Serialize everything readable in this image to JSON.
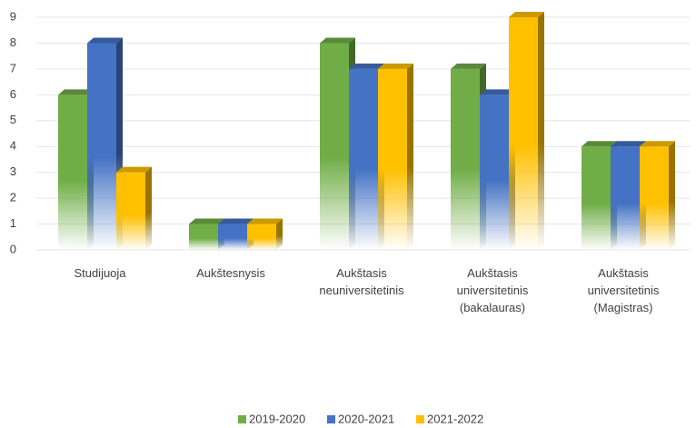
{
  "chart_data": {
    "type": "bar3d",
    "categories": [
      "Studijuoja",
      "Aukštesnysis",
      "Aukštasis neuniversitetinis",
      "Aukštasis universitetinis (bakalauras)",
      "Aukštasis universitetinis (Magistras)"
    ],
    "series": [
      {
        "name": "2019-2020",
        "color": "#70ad47",
        "values": [
          6,
          1,
          8,
          7,
          4
        ]
      },
      {
        "name": "2020-2021",
        "color": "#4472c4",
        "values": [
          8,
          1,
          7,
          6,
          4
        ]
      },
      {
        "name": "2021-2022",
        "color": "#ffc000",
        "values": [
          3,
          1,
          7,
          9,
          4
        ]
      }
    ],
    "ylim": [
      0,
      9
    ],
    "yticks": [
      0,
      1,
      2,
      3,
      4,
      5,
      6,
      7,
      8,
      9
    ],
    "grid": true,
    "legend": "bottom"
  }
}
